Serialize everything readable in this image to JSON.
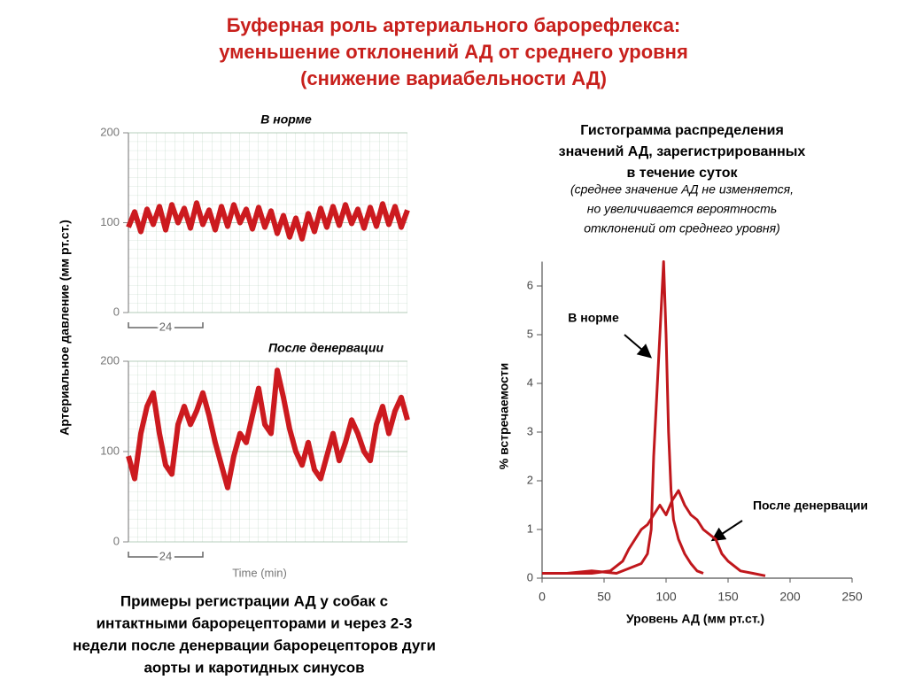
{
  "title": [
    "Буферная роль артериального барорефлекса:",
    "уменьшение отклонений АД от среднего уровня",
    "(снижение вариабельности АД)"
  ],
  "caption": [
    "Примеры регистрации АД у собак с",
    "интактными барорецепторами и через 2-3",
    "недели после денервации барорецепторов дуги",
    "аорты и каротидных синусов"
  ],
  "chart_data": [
    {
      "type": "line",
      "title": "В норме",
      "ylabel": "Артериальное давление  (мм рт.ст.)",
      "x": [
        0,
        2,
        4,
        6,
        8,
        10,
        12,
        14,
        16,
        18,
        20,
        22,
        24,
        26,
        28,
        30,
        32,
        34,
        36,
        38,
        40,
        42,
        44,
        46,
        48,
        50,
        52,
        54,
        56,
        58,
        60,
        62,
        64,
        66,
        68,
        70,
        72,
        74,
        76,
        78,
        80,
        82,
        84,
        86,
        88,
        90
      ],
      "series": [
        {
          "color": "#cc1a1f",
          "values": [
            95,
            112,
            90,
            115,
            98,
            118,
            92,
            120,
            100,
            116,
            94,
            122,
            98,
            114,
            92,
            118,
            96,
            120,
            100,
            115,
            93,
            117,
            95,
            113,
            88,
            108,
            84,
            105,
            82,
            110,
            90,
            116,
            95,
            118,
            97,
            120,
            99,
            115,
            94,
            117,
            96,
            121,
            98,
            118,
            95,
            114
          ]
        }
      ],
      "xlim": [
        0,
        90
      ],
      "ylim": [
        0,
        200
      ],
      "yticks": [
        0,
        100,
        200
      ],
      "scale_bar": 24
    },
    {
      "type": "line",
      "title": "После денервации",
      "xlabel": "Time (min)",
      "x": [
        0,
        2,
        4,
        6,
        8,
        10,
        12,
        14,
        16,
        18,
        20,
        22,
        24,
        26,
        28,
        30,
        32,
        34,
        36,
        38,
        40,
        42,
        44,
        46,
        48,
        50,
        52,
        54,
        56,
        58,
        60,
        62,
        64,
        66,
        68,
        70,
        72,
        74,
        76,
        78,
        80,
        82,
        84,
        86,
        88,
        90
      ],
      "series": [
        {
          "color": "#cc1a1f",
          "values": [
            95,
            70,
            120,
            150,
            165,
            120,
            85,
            75,
            130,
            150,
            130,
            145,
            165,
            140,
            110,
            85,
            60,
            95,
            120,
            110,
            140,
            170,
            130,
            120,
            190,
            160,
            125,
            100,
            85,
            110,
            80,
            70,
            95,
            120,
            90,
            110,
            135,
            120,
            100,
            90,
            130,
            150,
            120,
            145,
            160,
            135
          ]
        }
      ],
      "xlim": [
        0,
        90
      ],
      "ylim": [
        0,
        200
      ],
      "yticks": [
        0,
        100,
        200
      ],
      "scale_bar": 24
    },
    {
      "type": "line",
      "title": [
        "Гистограмма распределения",
        "значений АД, зарегистрированных",
        "в течение суток"
      ],
      "subtitle": [
        "(среднее значение АД не изменяется,",
        "но увеличивается вероятность",
        "отклонений от среднего уровня)"
      ],
      "xlabel": "Уровень АД (мм рт.ст.)",
      "ylabel": "% встречаемости",
      "xlim": [
        0,
        250
      ],
      "xticks": [
        0,
        50,
        100,
        150,
        200,
        250
      ],
      "ylim": [
        0,
        6.5
      ],
      "yticks": [
        0,
        1,
        2,
        3,
        4,
        5,
        6
      ],
      "series": [
        {
          "name": "В норме",
          "color": "#c0171c",
          "x": [
            0,
            20,
            40,
            60,
            70,
            80,
            85,
            88,
            90,
            92,
            94,
            96,
            98,
            100,
            102,
            104,
            106,
            110,
            115,
            120,
            125,
            130
          ],
          "values": [
            0.1,
            0.1,
            0.15,
            0.1,
            0.2,
            0.3,
            0.5,
            1.0,
            2.5,
            3.5,
            4.5,
            5.5,
            6.5,
            5.0,
            3.0,
            1.8,
            1.2,
            0.8,
            0.5,
            0.3,
            0.15,
            0.1
          ]
        },
        {
          "name": "После денервации",
          "color": "#c0171c",
          "x": [
            20,
            40,
            55,
            65,
            70,
            75,
            80,
            85,
            90,
            95,
            100,
            105,
            110,
            115,
            120,
            125,
            130,
            135,
            140,
            145,
            150,
            160,
            170,
            180
          ],
          "values": [
            0.1,
            0.1,
            0.15,
            0.35,
            0.6,
            0.8,
            1.0,
            1.1,
            1.3,
            1.5,
            1.3,
            1.6,
            1.8,
            1.5,
            1.3,
            1.2,
            1.0,
            0.9,
            0.8,
            0.5,
            0.35,
            0.15,
            0.1,
            0.05
          ]
        }
      ]
    }
  ]
}
